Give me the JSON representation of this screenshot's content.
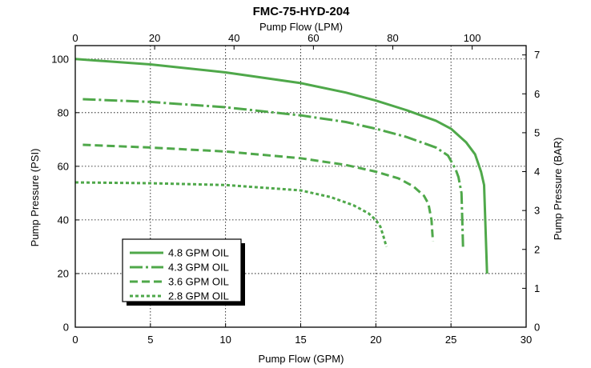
{
  "chart_data": {
    "type": "line",
    "title": "FMC-75-HYD-204",
    "xlabel": "Pump Flow (GPM)",
    "ylabel": "Pump Pressure (PSI)",
    "xlabel_top": "Pump Flow (LPM)",
    "ylabel_right": "Pump Pressure (BAR)",
    "xlim": [
      0,
      30
    ],
    "ylim": [
      0,
      105
    ],
    "xticks": [
      0,
      5,
      10,
      15,
      20,
      25,
      30
    ],
    "yticks": [
      0,
      20,
      40,
      60,
      80,
      100
    ],
    "xlim_top": [
      0,
      113.6
    ],
    "xticks_top": [
      0,
      20,
      40,
      60,
      80,
      100
    ],
    "ylim_right": [
      0,
      7.24
    ],
    "yticks_right": [
      0,
      1,
      2,
      3,
      4,
      5,
      6,
      7
    ],
    "grid": true,
    "legend_position": "bottom-left",
    "series": [
      {
        "name": "4.8 GPM OIL",
        "color": "#4fa84a",
        "dash": "solid",
        "x": [
          0,
          5,
          10,
          15,
          18,
          20,
          22,
          24,
          25,
          26,
          26.6,
          27,
          27.2,
          27.4
        ],
        "y": [
          100,
          98,
          95,
          91,
          87.5,
          84.5,
          81,
          77,
          74,
          69,
          64.5,
          58,
          53,
          20
        ]
      },
      {
        "name": "4.3 GPM OIL",
        "color": "#4fa84a",
        "dash": "dashdot",
        "x": [
          0.5,
          5,
          10,
          15,
          18,
          20,
          22,
          24,
          24.8,
          25.1,
          25.3,
          25.5,
          25.7,
          25.8
        ],
        "y": [
          85,
          84,
          82,
          79,
          76.5,
          74,
          71,
          67,
          64,
          61,
          59,
          56,
          50,
          30
        ]
      },
      {
        "name": "3.6 GPM OIL",
        "color": "#4fa84a",
        "dash": "longdash",
        "x": [
          0.5,
          5,
          10,
          15,
          18,
          20,
          21.5,
          22.5,
          23.2,
          23.5,
          23.7,
          23.8
        ],
        "y": [
          68,
          67,
          65.5,
          63,
          60.5,
          58,
          55.5,
          52.5,
          49,
          46,
          40,
          32
        ]
      },
      {
        "name": "2.8 GPM OIL",
        "color": "#4fa84a",
        "dash": "shortdash",
        "x": [
          0,
          5,
          10,
          15,
          17,
          18.5,
          19.5,
          20,
          20.3,
          20.5,
          20.7
        ],
        "y": [
          54,
          53.7,
          53,
          51,
          48.5,
          45.5,
          42.5,
          40,
          37.5,
          34,
          30
        ]
      }
    ]
  }
}
